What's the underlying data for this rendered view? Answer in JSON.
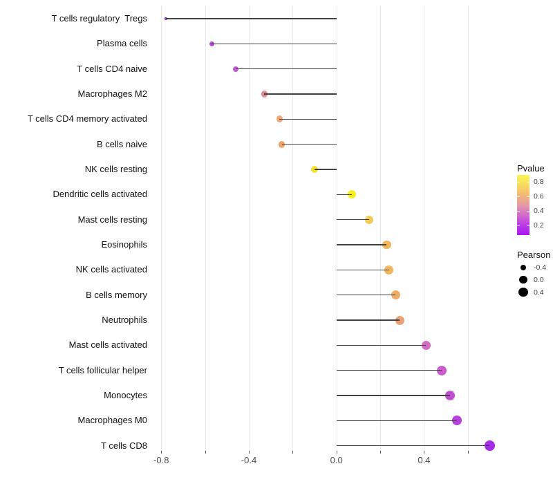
{
  "chart_data": {
    "type": "lollipop",
    "orientation": "horizontal",
    "title": "",
    "xlabel": "",
    "ylabel": "",
    "grid": "vertical-only",
    "x_axis": {
      "range": [
        -0.85,
        0.78
      ],
      "gridline_step": 0.2,
      "gridline_values": [
        -0.8,
        -0.6,
        -0.4,
        -0.2,
        0.0,
        0.2,
        0.4,
        0.6
      ],
      "labeled_ticks": [
        -0.8,
        -0.4,
        0.0,
        0.4
      ],
      "tick_labels": [
        "-0.8",
        "-0.4",
        "0.0",
        "0.4"
      ]
    },
    "series": [
      {
        "label": "T cells regulatory  Tregs",
        "pearson": -0.78,
        "color": "#9526DD"
      },
      {
        "label": "Plasma cells",
        "pearson": -0.57,
        "color": "#B04CD6"
      },
      {
        "label": "T cells CD4 naive",
        "pearson": -0.46,
        "color": "#C05BD2"
      },
      {
        "label": "Macrophages M2",
        "pearson": -0.33,
        "color": "#DC8C98"
      },
      {
        "label": "T cells CD4 memory activated",
        "pearson": -0.26,
        "color": "#EFAA79"
      },
      {
        "label": "B cells naive",
        "pearson": -0.25,
        "color": "#ECA368"
      },
      {
        "label": "NK cells resting",
        "pearson": -0.1,
        "color": "#F4E32C"
      },
      {
        "label": "Dendritic cells activated",
        "pearson": 0.07,
        "color": "#F8ED1E"
      },
      {
        "label": "Mast cells resting",
        "pearson": 0.15,
        "color": "#F1CB55"
      },
      {
        "label": "Eosinophils",
        "pearson": 0.23,
        "color": "#F2B55E"
      },
      {
        "label": "NK cells activated",
        "pearson": 0.24,
        "color": "#F2B45E"
      },
      {
        "label": "B cells memory",
        "pearson": 0.27,
        "color": "#F0AB67"
      },
      {
        "label": "Neutrophils",
        "pearson": 0.29,
        "color": "#EBA075"
      },
      {
        "label": "Mast cells activated",
        "pearson": 0.41,
        "color": "#D26CC0"
      },
      {
        "label": "T cells follicular helper",
        "pearson": 0.48,
        "color": "#CA5DCB"
      },
      {
        "label": "Monocytes",
        "pearson": 0.52,
        "color": "#C14FD5"
      },
      {
        "label": "Macrophages M0",
        "pearson": 0.55,
        "color": "#B840DC"
      },
      {
        "label": "T cells CD8",
        "pearson": 0.7,
        "color": "#A52BE8"
      }
    ],
    "legends": {
      "pvalue": {
        "title": "Pvalue",
        "tick_labels": [
          "0.8",
          "0.6",
          "0.4",
          "0.2"
        ],
        "gradient_top_to_bottom": [
          "#FCF451",
          "#F8DC5F",
          "#F2B878",
          "#E59BA2",
          "#D26BCC",
          "#BC3BE8",
          "#A816F2"
        ]
      },
      "pearson": {
        "title": "Pearson",
        "entries": [
          {
            "label": "-0.4",
            "value": -0.4
          },
          {
            "label": "0.0",
            "value": 0.0
          },
          {
            "label": "0.4",
            "value": 0.4
          }
        ],
        "dot_color": "#000000"
      }
    },
    "segment_color": "#404040"
  }
}
